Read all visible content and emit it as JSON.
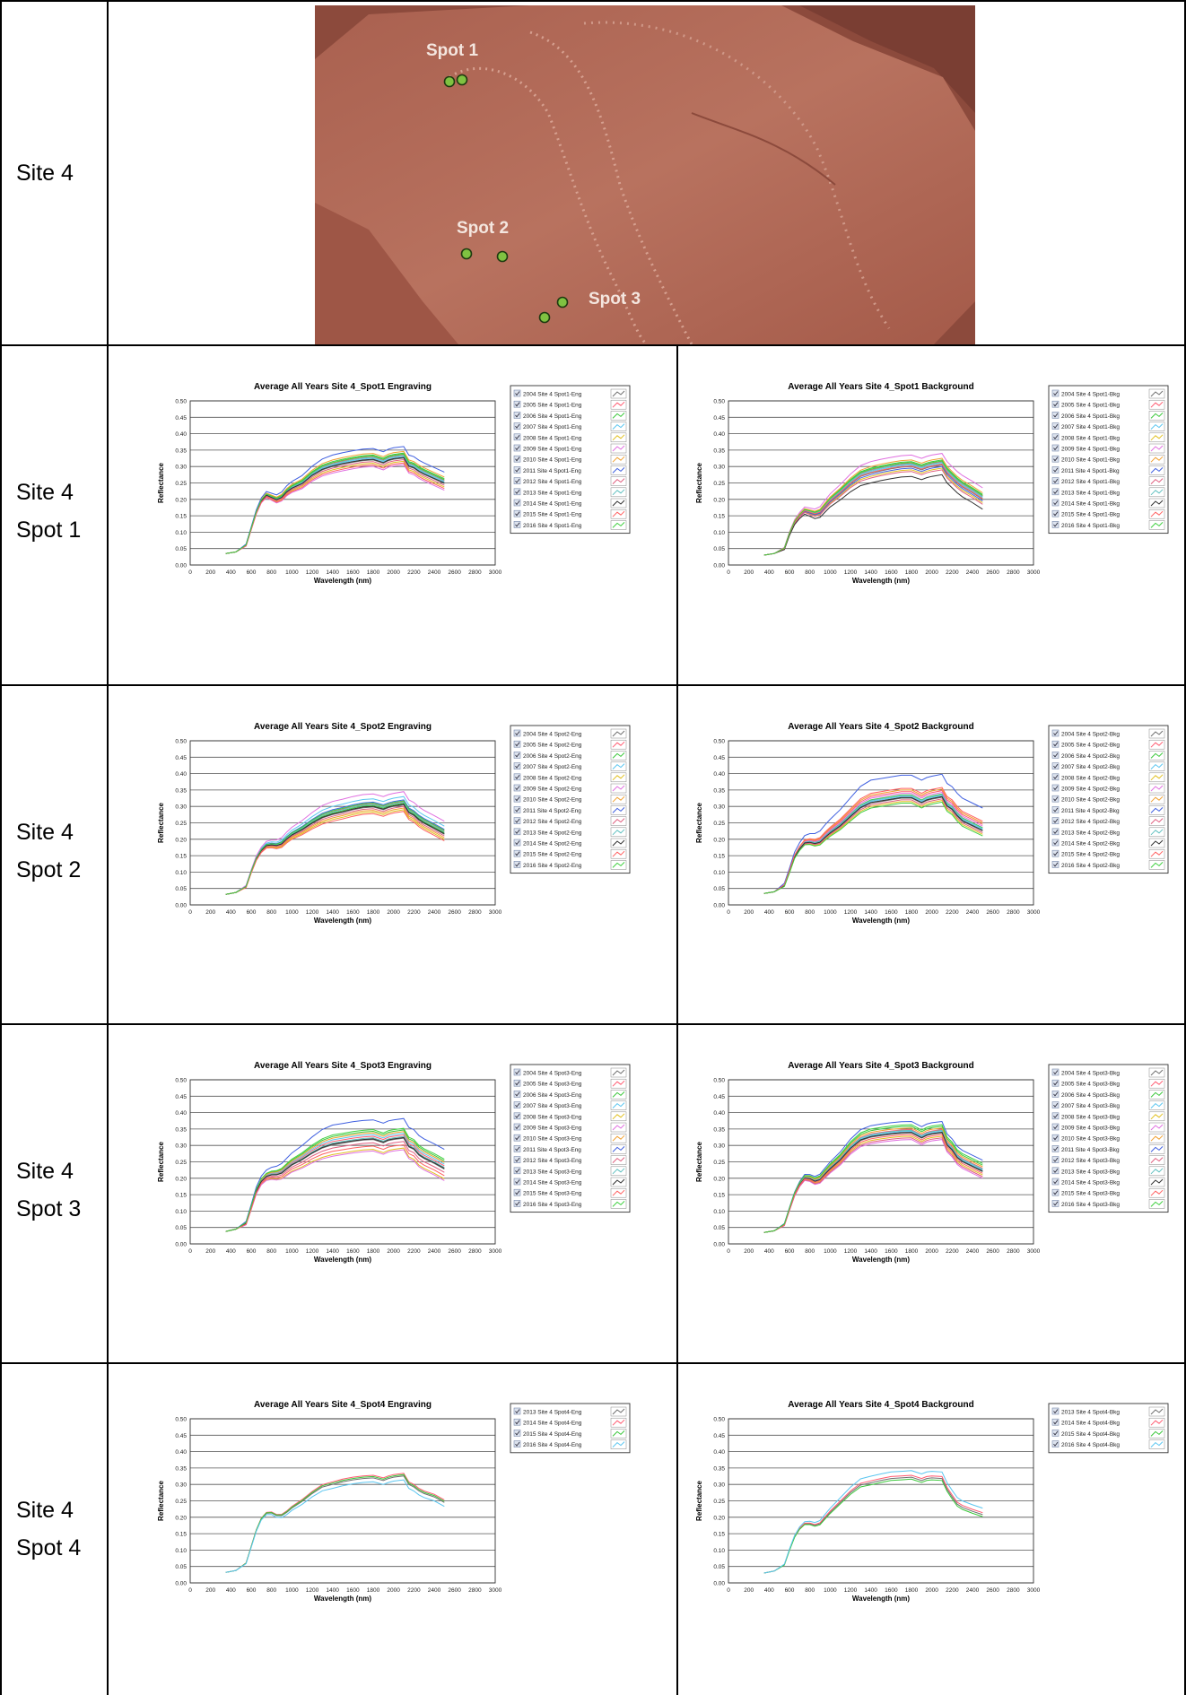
{
  "rows": [
    {
      "label_lines": [
        "Site 4"
      ]
    },
    {
      "label_lines": [
        "Site 4",
        "Spot 1"
      ]
    },
    {
      "label_lines": [
        "Site 4",
        "Spot 2"
      ]
    },
    {
      "label_lines": [
        "Site 4",
        "Spot 3"
      ]
    },
    {
      "label_lines": [
        "Site 4",
        "Spot 4"
      ]
    }
  ],
  "photo": {
    "spots": [
      {
        "label": "Spot 1"
      },
      {
        "label": "Spot 2"
      },
      {
        "label": "Spot 3"
      }
    ],
    "rock_color": "#b46f5e",
    "marker_color": "#7fc241"
  },
  "axes": {
    "xlabel": "Wavelength (nm)",
    "ylabel": "Reflectance",
    "xlim": [
      0,
      3000
    ],
    "ylim": [
      0,
      0.5
    ],
    "x_ticks": [
      "0",
      "200",
      "400",
      "600",
      "800",
      "1000",
      "1200",
      "1400",
      "1600",
      "1800",
      "2000",
      "2200",
      "2400",
      "2600",
      "2800",
      "3000"
    ],
    "y_ticks": [
      "0.00",
      "0.05",
      "0.10",
      "0.15",
      "0.20",
      "0.25",
      "0.30",
      "0.35",
      "0.40",
      "0.45",
      "0.50"
    ]
  },
  "palette": [
    "#6f6f6f",
    "#ff5a70",
    "#3cc83c",
    "#5bc6f0",
    "#e0c020",
    "#e070e0",
    "#f0a030",
    "#4060e0",
    "#e06080",
    "#60c0c0",
    "#303030",
    "#ff6060",
    "#40d040"
  ],
  "chart_data": [
    {
      "type": "line",
      "title": "Average All Years  Site 4_Spot1 Engraving",
      "xlabel": "Wavelength (nm)",
      "ylabel": "Reflectance",
      "xlim": [
        0,
        3000
      ],
      "ylim": [
        0,
        0.5
      ],
      "grid": true,
      "legend": "right",
      "x": [
        350,
        450,
        550,
        600,
        650,
        700,
        750,
        800,
        850,
        900,
        950,
        1000,
        1100,
        1200,
        1300,
        1400,
        1500,
        1600,
        1700,
        1800,
        1900,
        1950,
        2000,
        2100,
        2150,
        2200,
        2250,
        2300,
        2400,
        2500
      ],
      "base": [
        0.035,
        0.04,
        0.06,
        0.11,
        0.16,
        0.195,
        0.212,
        0.205,
        0.198,
        0.205,
        0.222,
        0.233,
        0.247,
        0.272,
        0.29,
        0.3,
        0.307,
        0.313,
        0.318,
        0.32,
        0.31,
        0.318,
        0.322,
        0.326,
        0.3,
        0.295,
        0.284,
        0.276,
        0.262,
        0.248
      ],
      "series": [
        {
          "name": "2004 Site 4 Spot1-Eng",
          "offset": 0.0
        },
        {
          "name": "2005 Site 4 Spot1-Eng",
          "offset": 0.01
        },
        {
          "name": "2006 Site 4 Spot1-Eng",
          "offset": 0.015
        },
        {
          "name": "2007 Site 4 Spot1-Eng",
          "offset": 0.005
        },
        {
          "name": "2008 Site 4 Spot1-Eng",
          "offset": -0.01
        },
        {
          "name": "2009 Site 4 Spot1-Eng",
          "offset": -0.02
        },
        {
          "name": "2010 Site 4 Spot1-Eng",
          "offset": 0.02
        },
        {
          "name": "2011 Site 4 Spot1-Eng",
          "offset": 0.035
        },
        {
          "name": "2012 Site 4 Spot1-Eng",
          "offset": -0.005
        },
        {
          "name": "2013 Site 4 Spot1-Eng",
          "offset": 0.008
        },
        {
          "name": "2014 Site 4 Spot1-Eng",
          "offset": 0.002
        },
        {
          "name": "2015 Site 4 Spot1-Eng",
          "offset": -0.015
        },
        {
          "name": "2016 Site 4 Spot1-Eng",
          "offset": 0.012
        }
      ]
    },
    {
      "type": "line",
      "title": "Average All Years  Site 4_Spot1 Background",
      "xlabel": "Wavelength (nm)",
      "ylabel": "Reflectance",
      "xlim": [
        0,
        3000
      ],
      "ylim": [
        0,
        0.5
      ],
      "grid": true,
      "legend": "right",
      "x": [
        350,
        450,
        550,
        600,
        650,
        700,
        750,
        800,
        850,
        900,
        950,
        1000,
        1100,
        1200,
        1300,
        1400,
        1500,
        1600,
        1700,
        1800,
        1900,
        1950,
        2000,
        2100,
        2150,
        2200,
        2250,
        2300,
        2400,
        2500
      ],
      "base": [
        0.03,
        0.035,
        0.05,
        0.095,
        0.13,
        0.15,
        0.165,
        0.16,
        0.155,
        0.16,
        0.178,
        0.195,
        0.22,
        0.248,
        0.27,
        0.28,
        0.287,
        0.293,
        0.298,
        0.3,
        0.29,
        0.296,
        0.3,
        0.305,
        0.28,
        0.265,
        0.25,
        0.238,
        0.22,
        0.2
      ],
      "series": [
        {
          "name": "2004 Site 4 Spot1-Bkg",
          "offset": 0.0
        },
        {
          "name": "2005 Site 4 Spot1-Bkg",
          "offset": 0.01
        },
        {
          "name": "2006 Site 4 Spot1-Bkg",
          "offset": 0.015
        },
        {
          "name": "2007 Site 4 Spot1-Bkg",
          "offset": 0.005
        },
        {
          "name": "2008 Site 4 Spot1-Bkg",
          "offset": -0.01
        },
        {
          "name": "2009 Site 4 Spot1-Bkg",
          "offset": 0.035
        },
        {
          "name": "2010 Site 4 Spot1-Bkg",
          "offset": 0.02
        },
        {
          "name": "2011 Site 4 Spot1-Bkg",
          "offset": -0.005
        },
        {
          "name": "2012 Site 4 Spot1-Bkg",
          "offset": -0.015
        },
        {
          "name": "2013 Site 4 Spot1-Bkg",
          "offset": 0.008
        },
        {
          "name": "2014 Site 4 Spot1-Bkg",
          "offset": -0.03
        },
        {
          "name": "2015 Site 4 Spot1-Bkg",
          "offset": 0.002
        },
        {
          "name": "2016 Site 4 Spot1-Bkg",
          "offset": 0.012
        }
      ]
    },
    {
      "type": "line",
      "title": "Average All Years  Site 4_Spot2 Engraving",
      "xlabel": "Wavelength (nm)",
      "ylabel": "Reflectance",
      "xlim": [
        0,
        3000
      ],
      "ylim": [
        0,
        0.5
      ],
      "grid": true,
      "legend": "right",
      "x": [
        350,
        450,
        550,
        600,
        650,
        700,
        750,
        800,
        850,
        900,
        950,
        1000,
        1100,
        1200,
        1300,
        1400,
        1500,
        1600,
        1700,
        1800,
        1900,
        1950,
        2000,
        2100,
        2150,
        2200,
        2250,
        2300,
        2400,
        2500
      ],
      "base": [
        0.032,
        0.038,
        0.055,
        0.1,
        0.14,
        0.165,
        0.18,
        0.182,
        0.18,
        0.185,
        0.2,
        0.212,
        0.228,
        0.248,
        0.265,
        0.275,
        0.282,
        0.29,
        0.296,
        0.298,
        0.29,
        0.296,
        0.3,
        0.305,
        0.28,
        0.272,
        0.258,
        0.248,
        0.232,
        0.215
      ],
      "series": [
        {
          "name": "2004 Site 4 Spot2-Eng",
          "offset": 0.0
        },
        {
          "name": "2005 Site 4 Spot2-Eng",
          "offset": 0.01
        },
        {
          "name": "2006 Site 4 Spot2-Eng",
          "offset": 0.005
        },
        {
          "name": "2007 Site 4 Spot2-Eng",
          "offset": 0.025
        },
        {
          "name": "2008 Site 4 Spot2-Eng",
          "offset": -0.015
        },
        {
          "name": "2009 Site 4 Spot2-Eng",
          "offset": 0.04
        },
        {
          "name": "2010 Site 4 Spot2-Eng",
          "offset": -0.01
        },
        {
          "name": "2011 Site 4 Spot2-Eng",
          "offset": 0.015
        },
        {
          "name": "2012 Site 4 Spot2-Eng",
          "offset": -0.005
        },
        {
          "name": "2013 Site 4 Spot2-Eng",
          "offset": 0.008
        },
        {
          "name": "2014 Site 4 Spot2-Eng",
          "offset": 0.002
        },
        {
          "name": "2015 Site 4 Spot2-Eng",
          "offset": -0.02
        },
        {
          "name": "2016 Site 4 Spot2-Eng",
          "offset": 0.012
        }
      ]
    },
    {
      "type": "line",
      "title": "Average All Years  Site 4_Spot2 Background",
      "xlabel": "Wavelength (nm)",
      "ylabel": "Reflectance",
      "xlim": [
        0,
        3000
      ],
      "ylim": [
        0,
        0.5
      ],
      "grid": true,
      "legend": "right",
      "x": [
        350,
        450,
        550,
        600,
        650,
        700,
        750,
        800,
        850,
        900,
        950,
        1000,
        1100,
        1200,
        1300,
        1400,
        1500,
        1600,
        1700,
        1800,
        1900,
        1950,
        2000,
        2100,
        2150,
        2200,
        2250,
        2300,
        2400,
        2500
      ],
      "base": [
        0.035,
        0.04,
        0.058,
        0.1,
        0.145,
        0.17,
        0.188,
        0.19,
        0.186,
        0.19,
        0.205,
        0.218,
        0.24,
        0.268,
        0.295,
        0.31,
        0.315,
        0.32,
        0.325,
        0.325,
        0.31,
        0.318,
        0.322,
        0.328,
        0.3,
        0.29,
        0.27,
        0.255,
        0.24,
        0.225
      ],
      "series": [
        {
          "name": "2004 Site 4 Spot2-Bkg",
          "offset": 0.0
        },
        {
          "name": "2005 Site 4 Spot2-Bkg",
          "offset": 0.02
        },
        {
          "name": "2006 Site 4 Spot2-Bkg",
          "offset": 0.01
        },
        {
          "name": "2007 Site 4 Spot2-Bkg",
          "offset": 0.005
        },
        {
          "name": "2008 Site 4 Spot2-Bkg",
          "offset": -0.01
        },
        {
          "name": "2009 Site 4 Spot2-Bkg",
          "offset": 0.015
        },
        {
          "name": "2010 Site 4 Spot2-Bkg",
          "offset": 0.025
        },
        {
          "name": "2011 Site 4 Spot2-Bkg",
          "offset": 0.07
        },
        {
          "name": "2012 Site 4 Spot2-Bkg",
          "offset": -0.005
        },
        {
          "name": "2013 Site 4 Spot2-Bkg",
          "offset": 0.008
        },
        {
          "name": "2014 Site 4 Spot2-Bkg",
          "offset": 0.002
        },
        {
          "name": "2015 Site 4 Spot2-Bkg",
          "offset": 0.03
        },
        {
          "name": "2016 Site 4 Spot2-Bkg",
          "offset": -0.015
        }
      ]
    },
    {
      "type": "line",
      "title": "Average All Years  Site 4_Spot3 Engraving",
      "xlabel": "Wavelength (nm)",
      "ylabel": "Reflectance",
      "xlim": [
        0,
        3000
      ],
      "ylim": [
        0,
        0.5
      ],
      "grid": true,
      "legend": "right",
      "x": [
        350,
        450,
        550,
        600,
        650,
        700,
        750,
        800,
        850,
        900,
        950,
        1000,
        1100,
        1200,
        1300,
        1400,
        1500,
        1600,
        1700,
        1800,
        1900,
        1950,
        2000,
        2100,
        2150,
        2200,
        2250,
        2300,
        2400,
        2500
      ],
      "base": [
        0.038,
        0.045,
        0.062,
        0.11,
        0.16,
        0.19,
        0.205,
        0.21,
        0.21,
        0.215,
        0.228,
        0.24,
        0.256,
        0.276,
        0.292,
        0.302,
        0.307,
        0.312,
        0.316,
        0.318,
        0.308,
        0.315,
        0.318,
        0.322,
        0.295,
        0.288,
        0.27,
        0.26,
        0.245,
        0.228
      ],
      "series": [
        {
          "name": "2004 Site 4 Spot3-Eng",
          "offset": 0.0
        },
        {
          "name": "2005 Site 4 Spot3-Eng",
          "offset": 0.01
        },
        {
          "name": "2006 Site 4 Spot3-Eng",
          "offset": 0.025
        },
        {
          "name": "2007 Site 4 Spot3-Eng",
          "offset": 0.015
        },
        {
          "name": "2008 Site 4 Spot3-Eng",
          "offset": -0.03
        },
        {
          "name": "2009 Site 4 Spot3-Eng",
          "offset": -0.035
        },
        {
          "name": "2010 Site 4 Spot3-Eng",
          "offset": 0.02
        },
        {
          "name": "2011 Site 4 Spot3-Eng",
          "offset": 0.06
        },
        {
          "name": "2012 Site 4 Spot3-Eng",
          "offset": -0.01
        },
        {
          "name": "2013 Site 4 Spot3-Eng",
          "offset": 0.005
        },
        {
          "name": "2014 Site 4 Spot3-Eng",
          "offset": 0.002
        },
        {
          "name": "2015 Site 4 Spot3-Eng",
          "offset": -0.02
        },
        {
          "name": "2016 Site 4 Spot3-Eng",
          "offset": 0.03
        }
      ]
    },
    {
      "type": "line",
      "title": "Average All Years  Site 4_Spot3 Background",
      "xlabel": "Wavelength (nm)",
      "ylabel": "Reflectance",
      "xlim": [
        0,
        3000
      ],
      "ylim": [
        0,
        0.5
      ],
      "grid": true,
      "legend": "right",
      "x": [
        350,
        450,
        550,
        600,
        650,
        700,
        750,
        800,
        850,
        900,
        950,
        1000,
        1100,
        1200,
        1300,
        1400,
        1500,
        1600,
        1700,
        1800,
        1900,
        1950,
        2000,
        2100,
        2150,
        2200,
        2250,
        2300,
        2400,
        2500
      ],
      "base": [
        0.035,
        0.04,
        0.058,
        0.105,
        0.15,
        0.18,
        0.2,
        0.198,
        0.19,
        0.195,
        0.212,
        0.228,
        0.255,
        0.29,
        0.315,
        0.325,
        0.33,
        0.334,
        0.337,
        0.338,
        0.322,
        0.33,
        0.334,
        0.338,
        0.3,
        0.285,
        0.262,
        0.25,
        0.235,
        0.22
      ],
      "series": [
        {
          "name": "2004 Site 4 Spot3-Bkg",
          "offset": 0.0
        },
        {
          "name": "2005 Site 4 Spot3-Bkg",
          "offset": 0.01
        },
        {
          "name": "2006 Site 4 Spot3-Bkg",
          "offset": 0.02
        },
        {
          "name": "2007 Site 4 Spot3-Bkg",
          "offset": 0.005
        },
        {
          "name": "2008 Site 4 Spot3-Bkg",
          "offset": -0.01
        },
        {
          "name": "2009 Site 4 Spot3-Bkg",
          "offset": -0.02
        },
        {
          "name": "2010 Site 4 Spot3-Bkg",
          "offset": 0.015
        },
        {
          "name": "2011 Site 4 Spot3-Bkg",
          "offset": 0.035
        },
        {
          "name": "2012 Site 4 Spot3-Bkg",
          "offset": -0.015
        },
        {
          "name": "2013 Site 4 Spot3-Bkg",
          "offset": 0.008
        },
        {
          "name": "2014 Site 4 Spot3-Bkg",
          "offset": 0.002
        },
        {
          "name": "2015 Site 4 Spot3-Bkg",
          "offset": -0.005
        },
        {
          "name": "2016 Site 4 Spot3-Bkg",
          "offset": 0.025
        }
      ]
    },
    {
      "type": "line",
      "title": "Average All Years  Site 4_Spot4 Engraving",
      "xlabel": "Wavelength (nm)",
      "ylabel": "Reflectance",
      "xlim": [
        0,
        3000
      ],
      "ylim": [
        0,
        0.5
      ],
      "grid": true,
      "legend": "right",
      "x": [
        350,
        450,
        550,
        600,
        650,
        700,
        750,
        800,
        850,
        900,
        950,
        1000,
        1100,
        1200,
        1300,
        1400,
        1500,
        1600,
        1700,
        1800,
        1900,
        1950,
        2000,
        2100,
        2150,
        2200,
        2250,
        2300,
        2400,
        2500
      ],
      "base": [
        0.032,
        0.038,
        0.06,
        0.11,
        0.16,
        0.195,
        0.212,
        0.213,
        0.205,
        0.205,
        0.215,
        0.228,
        0.248,
        0.272,
        0.292,
        0.3,
        0.308,
        0.314,
        0.318,
        0.32,
        0.312,
        0.318,
        0.322,
        0.326,
        0.3,
        0.292,
        0.28,
        0.272,
        0.262,
        0.245
      ],
      "series": [
        {
          "name": "2013 Site 4 Spot4-Eng",
          "offset": 0.0
        },
        {
          "name": "2014 Site 4 Spot4-Eng",
          "offset": 0.008
        },
        {
          "name": "2015 Site 4 Spot4-Eng",
          "offset": 0.004
        },
        {
          "name": "2016 Site 4 Spot4-Eng",
          "offset": -0.012
        }
      ]
    },
    {
      "type": "line",
      "title": "Average All Years  Site 4_Spot4 Background",
      "xlabel": "Wavelength (nm)",
      "ylabel": "Reflectance",
      "xlim": [
        0,
        3000
      ],
      "ylim": [
        0,
        0.5
      ],
      "grid": true,
      "legend": "right",
      "x": [
        350,
        450,
        550,
        600,
        650,
        700,
        750,
        800,
        850,
        900,
        950,
        1000,
        1100,
        1200,
        1300,
        1400,
        1500,
        1600,
        1700,
        1800,
        1900,
        1950,
        2000,
        2100,
        2150,
        2200,
        2250,
        2300,
        2400,
        2500
      ],
      "base": [
        0.03,
        0.036,
        0.055,
        0.1,
        0.14,
        0.165,
        0.18,
        0.18,
        0.175,
        0.18,
        0.198,
        0.215,
        0.245,
        0.275,
        0.298,
        0.305,
        0.312,
        0.318,
        0.32,
        0.322,
        0.312,
        0.318,
        0.32,
        0.318,
        0.285,
        0.262,
        0.24,
        0.23,
        0.218,
        0.208
      ],
      "series": [
        {
          "name": "2013 Site 4 Spot4-Bkg",
          "offset": 0.0
        },
        {
          "name": "2014 Site 4 Spot4-Bkg",
          "offset": 0.006
        },
        {
          "name": "2015 Site 4 Spot4-Bkg",
          "offset": -0.006
        },
        {
          "name": "2016 Site 4 Spot4-Bkg",
          "offset": 0.02
        }
      ]
    }
  ]
}
